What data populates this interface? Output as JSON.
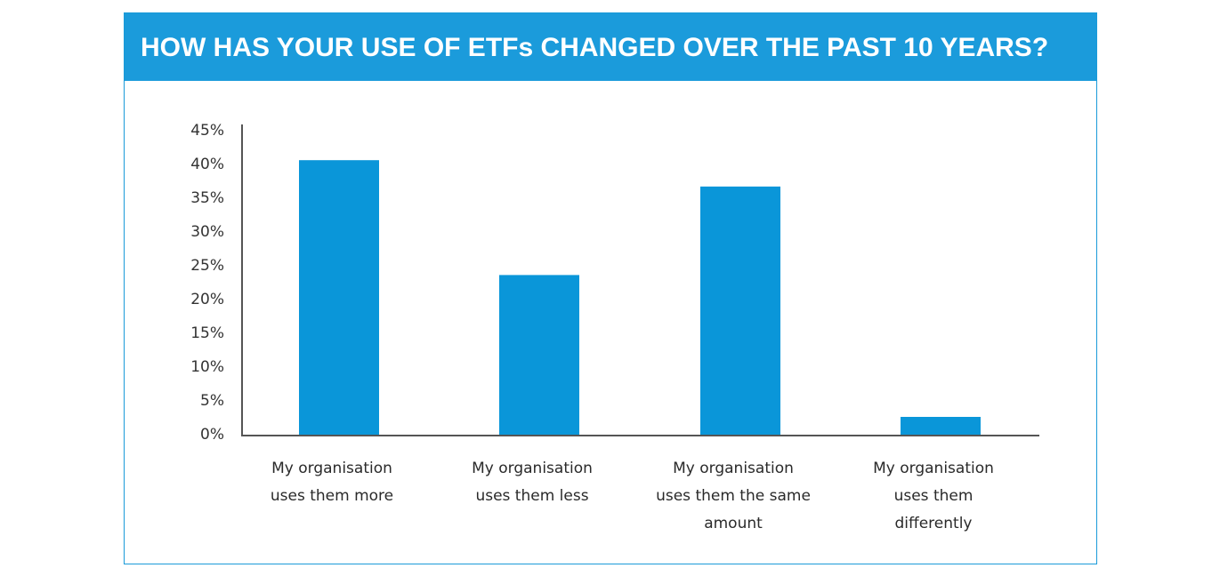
{
  "colors": {
    "accent": "#1b9bdb",
    "bar": "#0a96d9",
    "axis": "#555555"
  },
  "chart_data": {
    "type": "bar",
    "title": "HOW HAS YOUR USE OF ETFs CHANGED OVER THE PAST 10 YEARS?",
    "categories": [
      [
        "My organisation",
        "uses them more"
      ],
      [
        "My organisation",
        "uses them less"
      ],
      [
        "My organisation",
        "uses them the same",
        "amount"
      ],
      [
        "My organisation",
        "uses them",
        "differently"
      ]
    ],
    "values": [
      40.5,
      23.5,
      36.6,
      2.5
    ],
    "ylim": [
      0,
      45
    ],
    "yticks": [
      0,
      5,
      10,
      15,
      20,
      25,
      30,
      35,
      40,
      45
    ],
    "ytick_labels": [
      "0%",
      "5%",
      "10%",
      "15%",
      "20%",
      "25%",
      "30%",
      "35%",
      "40%",
      "45%"
    ],
    "xlabel": "",
    "ylabel": "",
    "grid": false,
    "legend": "none"
  }
}
